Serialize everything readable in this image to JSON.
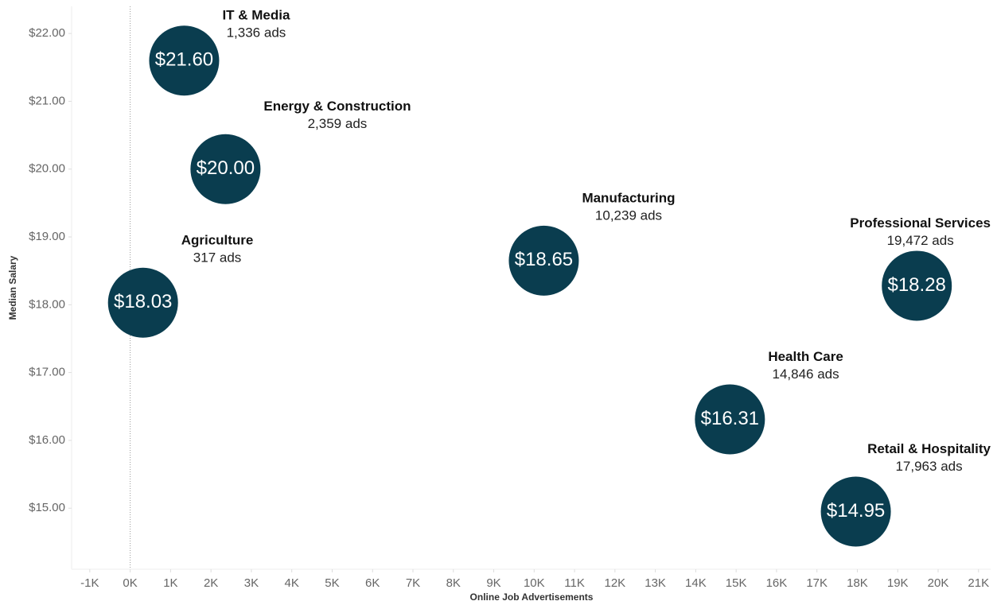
{
  "chart_data": {
    "type": "scatter",
    "x_axis_label": "Online Job Advertisements",
    "y_axis_label": "Median Salary",
    "categories": [
      "IT & Media",
      "Energy & Construction",
      "Agriculture",
      "Manufacturing",
      "Professional Services",
      "Health Care",
      "Retail & Hospitality"
    ],
    "x": [
      1336,
      2359,
      317,
      10239,
      19472,
      14846,
      17963
    ],
    "x_labels": [
      "1,336 ads",
      "2,359 ads",
      "317 ads",
      "10,239 ads",
      "19,472 ads",
      "14,846 ads",
      "17,963 ads"
    ],
    "values": [
      21.6,
      20.0,
      18.03,
      18.65,
      18.28,
      16.31,
      14.95
    ],
    "value_labels": [
      "$21.60",
      "$20.00",
      "$18.03",
      "$18.65",
      "$18.28",
      "$16.31",
      "$14.95"
    ],
    "color": "#0a3d4f",
    "zero_line": true,
    "xlim": [
      -1450,
      21300
    ],
    "ylim": [
      14.1,
      22.4
    ],
    "xticks": [
      {
        "value": -1000,
        "label": "-1K"
      },
      {
        "value": 0,
        "label": "0K"
      },
      {
        "value": 1000,
        "label": "1K"
      },
      {
        "value": 2000,
        "label": "2K"
      },
      {
        "value": 3000,
        "label": "3K"
      },
      {
        "value": 4000,
        "label": "4K"
      },
      {
        "value": 5000,
        "label": "5K"
      },
      {
        "value": 6000,
        "label": "6K"
      },
      {
        "value": 7000,
        "label": "7K"
      },
      {
        "value": 8000,
        "label": "8K"
      },
      {
        "value": 9000,
        "label": "9K"
      },
      {
        "value": 10000,
        "label": "10K"
      },
      {
        "value": 11000,
        "label": "11K"
      },
      {
        "value": 12000,
        "label": "12K"
      },
      {
        "value": 13000,
        "label": "13K"
      },
      {
        "value": 14000,
        "label": "14K"
      },
      {
        "value": 15000,
        "label": "15K"
      },
      {
        "value": 16000,
        "label": "16K"
      },
      {
        "value": 17000,
        "label": "17K"
      },
      {
        "value": 18000,
        "label": "18K"
      },
      {
        "value": 19000,
        "label": "19K"
      },
      {
        "value": 20000,
        "label": "20K"
      },
      {
        "value": 21000,
        "label": "21K"
      }
    ],
    "yticks": [
      {
        "value": 15,
        "label": "$15.00"
      },
      {
        "value": 16,
        "label": "$16.00"
      },
      {
        "value": 17,
        "label": "$17.00"
      },
      {
        "value": 18,
        "label": "$18.00"
      },
      {
        "value": 19,
        "label": "$19.00"
      },
      {
        "value": 20,
        "label": "$20.00"
      },
      {
        "value": 21,
        "label": "$21.00"
      },
      {
        "value": 22,
        "label": "$22.00"
      }
    ]
  }
}
